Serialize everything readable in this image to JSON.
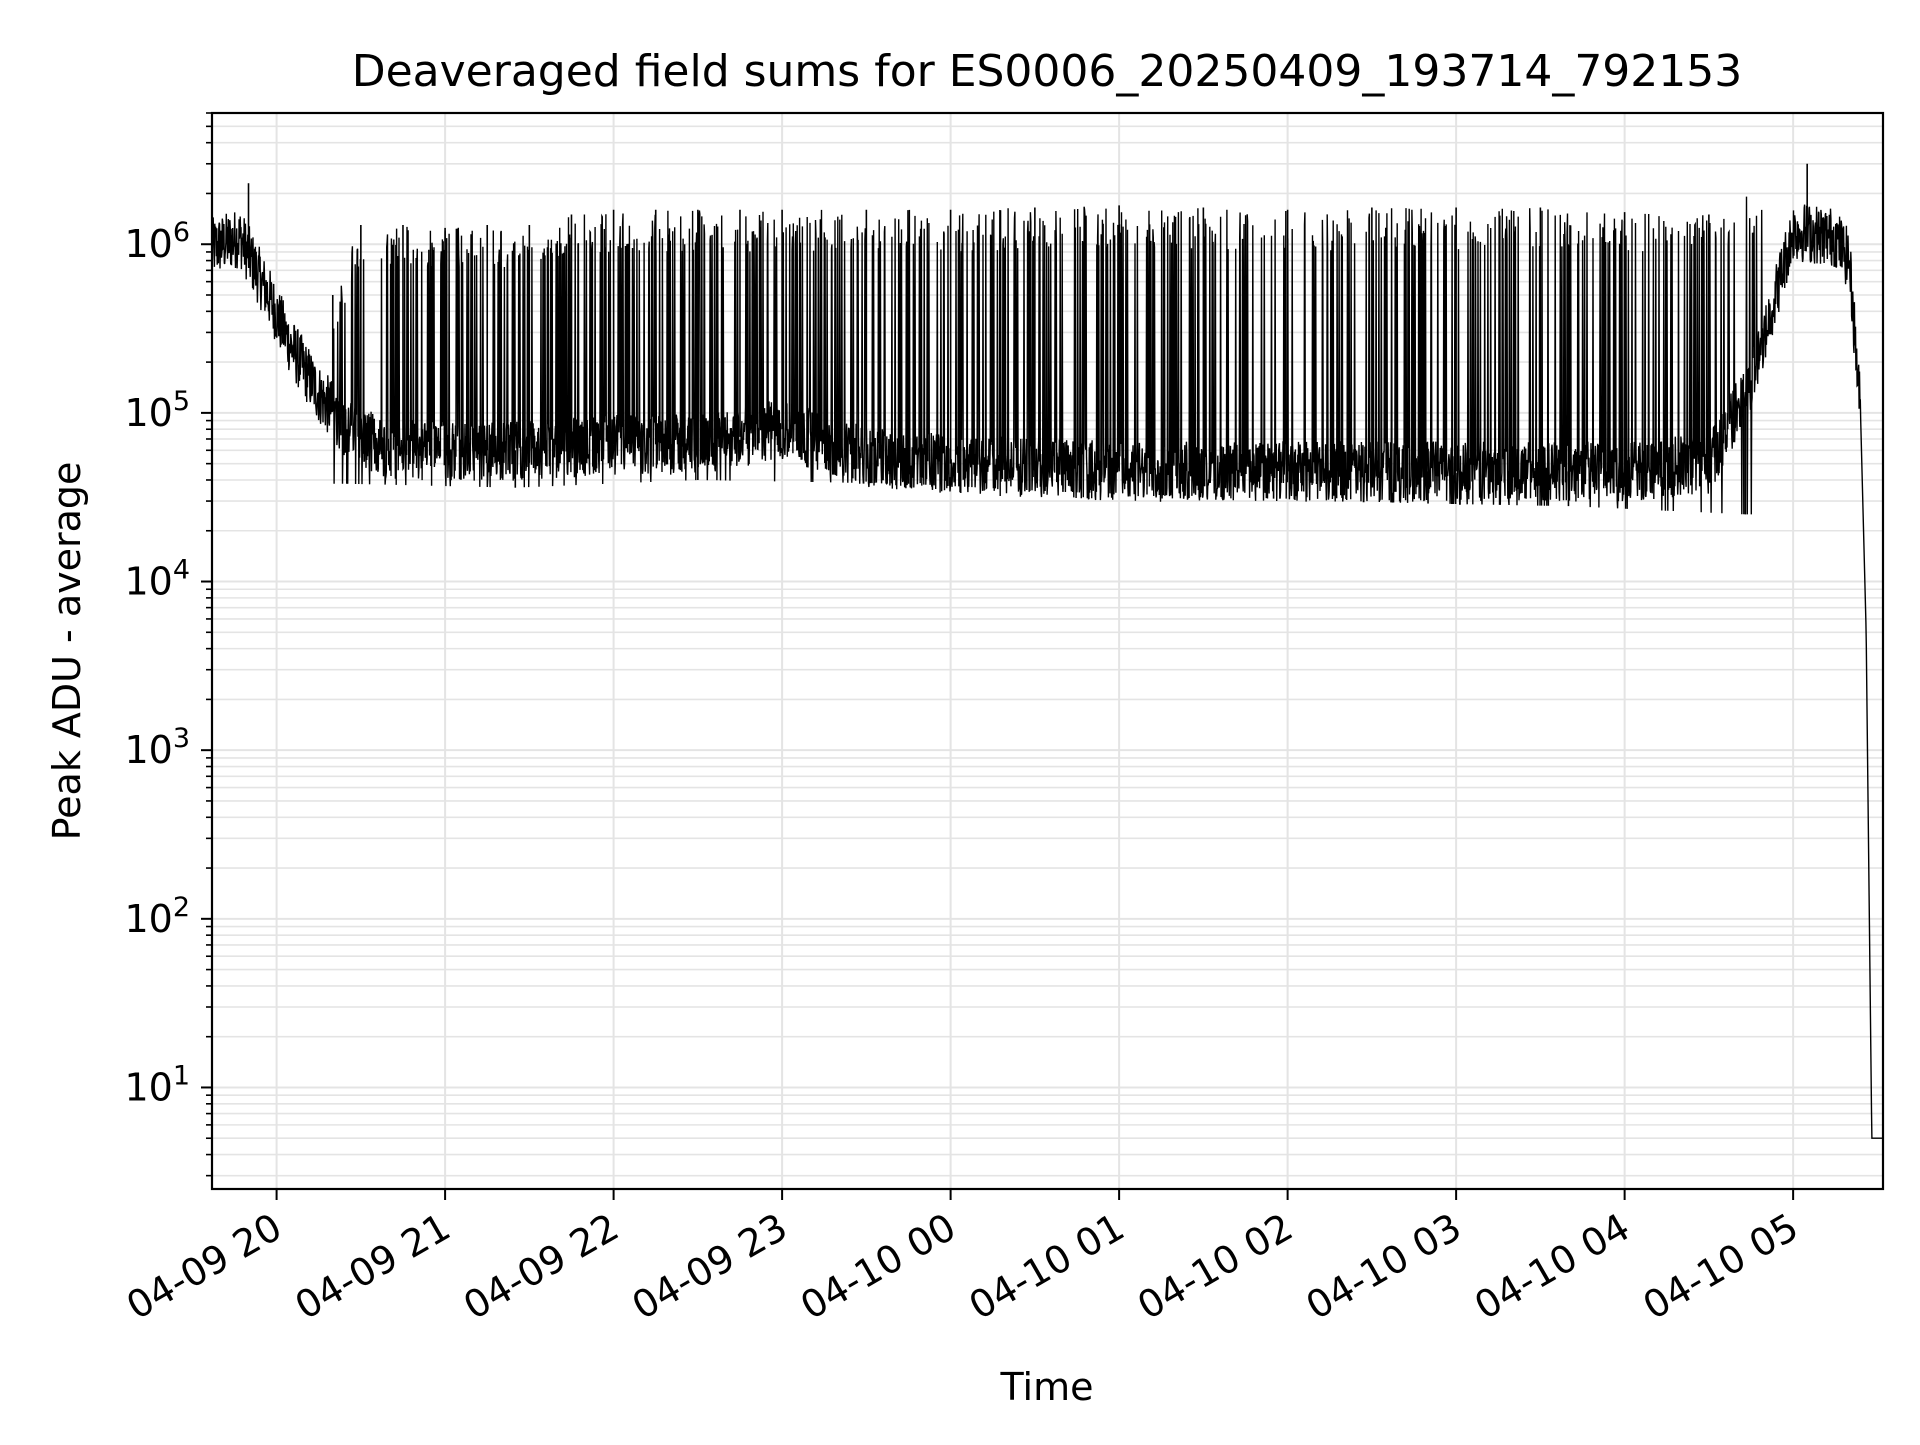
{
  "chart_data": {
    "type": "line",
    "title": "Deaveraged field sums for ES0006_20250409_193714_792153",
    "xlabel": "Time",
    "ylabel": "Peak ADU - average",
    "y_scale": "log",
    "ylim": [
      2.5,
      6000000
    ],
    "xlim": [
      "04-09 19:37",
      "04-10 05:32"
    ],
    "grid": true,
    "grid_minor": true,
    "line_color": "#000000",
    "x_ticks": [
      "04-09 20",
      "04-09 21",
      "04-09 22",
      "04-09 23",
      "04-10 00",
      "04-10 01",
      "04-10 02",
      "04-10 03",
      "04-10 04",
      "04-10 05"
    ],
    "y_ticks": [
      {
        "base": "10",
        "exp": "1",
        "value": 10
      },
      {
        "base": "10",
        "exp": "2",
        "value": 100
      },
      {
        "base": "10",
        "exp": "3",
        "value": 1000
      },
      {
        "base": "10",
        "exp": "4",
        "value": 10000
      },
      {
        "base": "10",
        "exp": "5",
        "value": 100000
      },
      {
        "base": "10",
        "exp": "6",
        "value": 1000000
      }
    ],
    "series": [
      {
        "baseline": {
          "x": [
            "04-09 19:37",
            "04-09 19:47",
            "04-09 19:57",
            "04-09 20:05",
            "04-09 20:15",
            "04-09 20:25",
            "04-09 20:40",
            "04-09 21:00",
            "04-09 21:30",
            "04-09 22:00",
            "04-09 22:30",
            "04-09 23:00",
            "04-09 23:30",
            "04-10 00:00",
            "04-10 01:00",
            "04-10 02:00",
            "04-10 03:00",
            "04-10 04:00",
            "04-10 04:30",
            "04-10 04:45",
            "04-10 05:00",
            "04-10 05:15",
            "04-10 05:20",
            "04-10 05:24",
            "04-10 05:26",
            "04-10 05:28",
            "04-10 05:32"
          ],
          "y": [
            950000,
            1100000,
            500000,
            250000,
            130000,
            80000,
            60000,
            60000,
            60000,
            65000,
            65000,
            80000,
            55000,
            50000,
            45000,
            45000,
            45000,
            45000,
            50000,
            150000,
            1200000,
            1100000,
            800000,
            100000,
            5000,
            5,
            5
          ]
        },
        "spikes": {
          "x": [
            "04-09 19:50",
            "04-09 20:20",
            "04-09 20:30",
            "04-09 20:45",
            "04-09 21:00",
            "04-09 21:15",
            "04-09 21:30",
            "04-09 21:45",
            "04-09 22:00",
            "04-09 22:15",
            "04-09 22:30",
            "04-09 22:45",
            "04-09 23:00",
            "04-09 23:30",
            "04-10 00:00",
            "04-10 00:30",
            "04-10 01:00",
            "04-10 01:30",
            "04-10 02:00",
            "04-10 02:30",
            "04-10 03:00",
            "04-10 03:30",
            "04-10 04:00",
            "04-10 04:30",
            "04-10 05:05"
          ],
          "y": [
            2300000,
            500000,
            1300000,
            1300000,
            1250000,
            1300000,
            1300000,
            1500000,
            1600000,
            1600000,
            1600000,
            1600000,
            1600000,
            1600000,
            1600000,
            1650000,
            1700000,
            1650000,
            1600000,
            1650000,
            1650000,
            1650000,
            1550000,
            1500000,
            3000000
          ]
        },
        "dips": {
          "x": [
            "04-09 20:25",
            "04-09 21:25",
            "04-09 22:30",
            "04-09 23:45",
            "04-10 00:40",
            "04-10 01:55",
            "04-10 02:50",
            "04-10 03:40",
            "04-10 04:43"
          ],
          "y": [
            38000,
            36000,
            40000,
            38000,
            34000,
            31000,
            29000,
            28000,
            25000
          ]
        }
      }
    ]
  }
}
